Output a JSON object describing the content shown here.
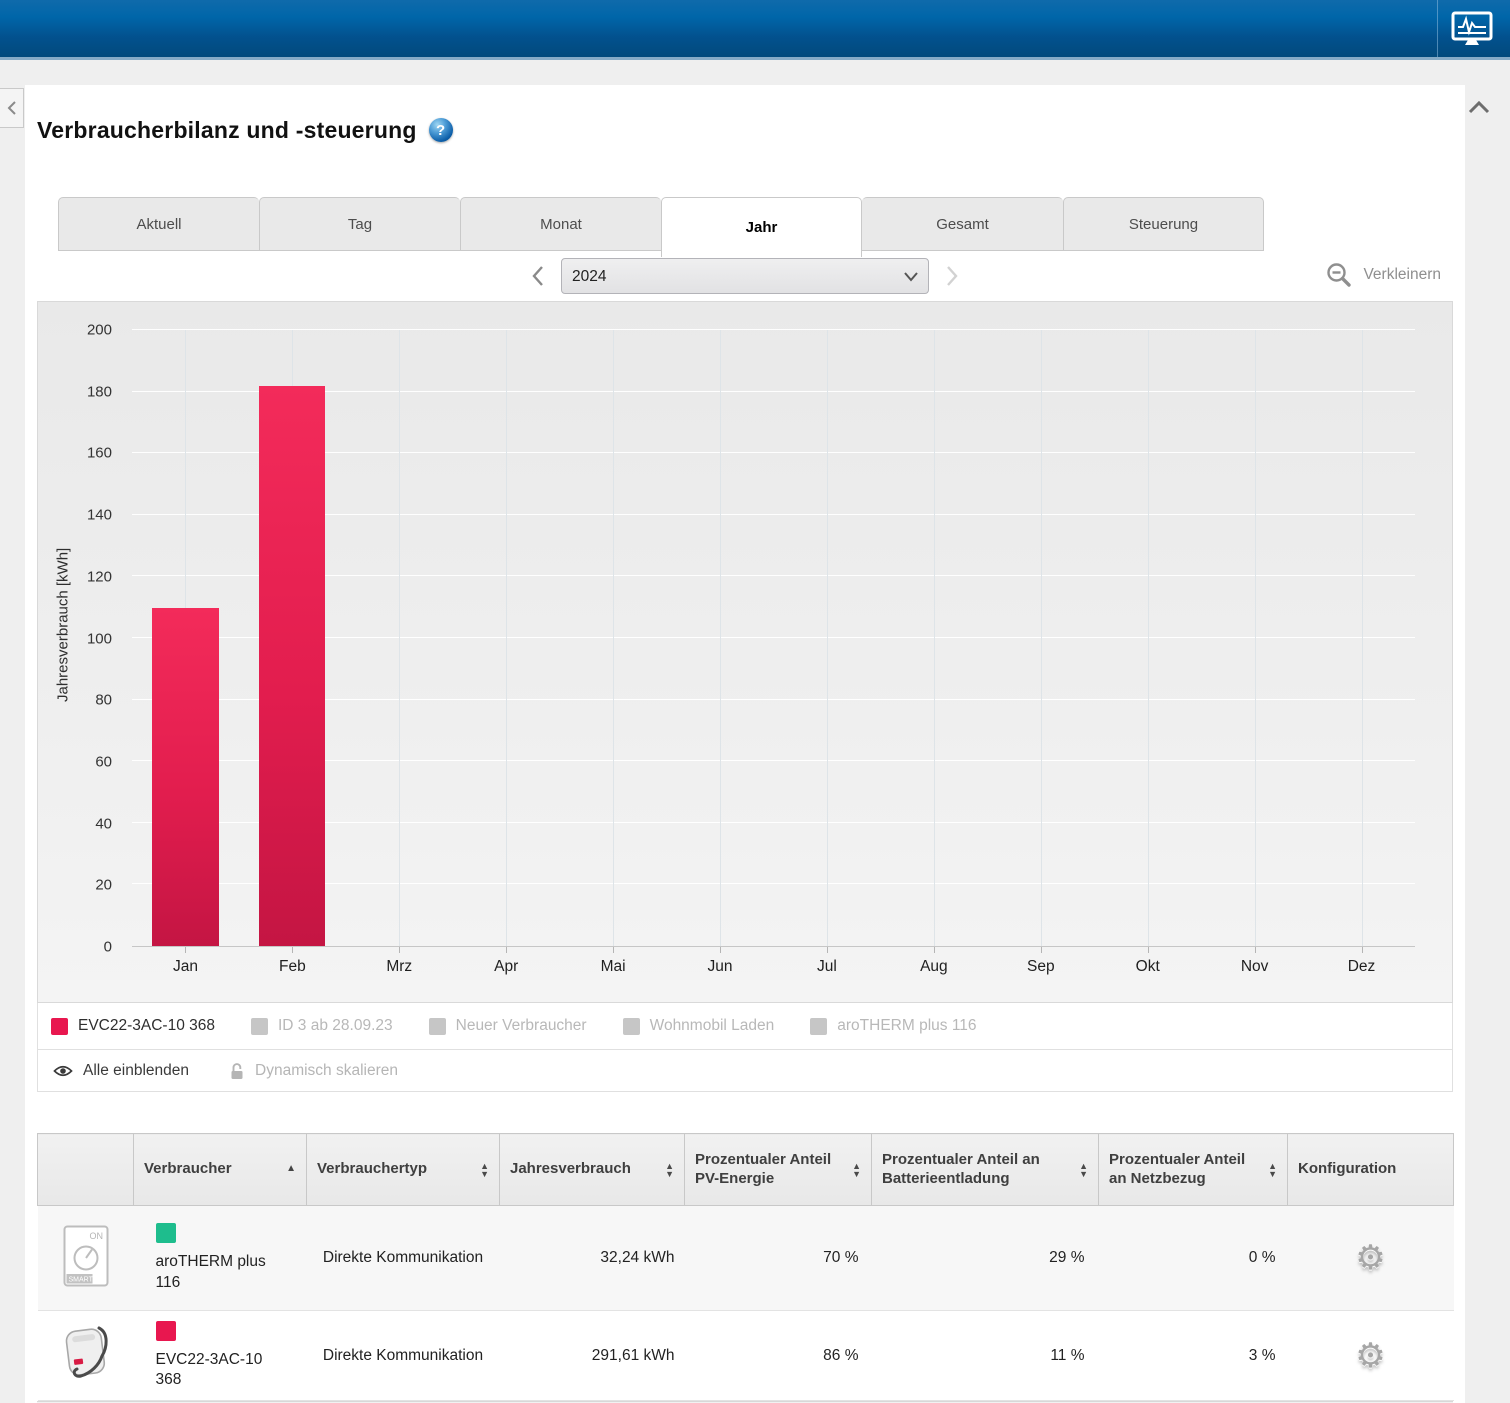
{
  "page": {
    "title": "Verbraucherbilanz und -steuerung",
    "help_glyph": "?"
  },
  "tabs": [
    {
      "label": "Aktuell",
      "active": false
    },
    {
      "label": "Tag",
      "active": false
    },
    {
      "label": "Monat",
      "active": false
    },
    {
      "label": "Jahr",
      "active": true
    },
    {
      "label": "Gesamt",
      "active": false
    },
    {
      "label": "Steuerung",
      "active": false
    }
  ],
  "period_selector": {
    "selected": "2024",
    "options": [
      "2024"
    ]
  },
  "zoom_control": {
    "label": "Verkleinern"
  },
  "chart_data": {
    "type": "bar",
    "title": "",
    "xlabel": "",
    "ylabel": "Jahresverbrauch [kWh]",
    "ylim": [
      0,
      200
    ],
    "ytick_step": 20,
    "grid": true,
    "legend_position": "bottom",
    "categories": [
      "Jan",
      "Feb",
      "Mrz",
      "Apr",
      "Mai",
      "Jun",
      "Jul",
      "Aug",
      "Sep",
      "Okt",
      "Nov",
      "Dez"
    ],
    "series": [
      {
        "name": "EVC22-3AC-10 368",
        "color": "#e8174f",
        "values": [
          109.8,
          181.8,
          0,
          0,
          0,
          0,
          0,
          0,
          0,
          0,
          0,
          0
        ]
      }
    ]
  },
  "legend": {
    "items": [
      {
        "label": "EVC22-3AC-10 368",
        "color": "#e8174f",
        "active": true
      },
      {
        "label": "ID 3 ab 28.09.23",
        "color": "#c6c6c6",
        "active": false
      },
      {
        "label": "Neuer Verbraucher",
        "color": "#c6c6c6",
        "active": false
      },
      {
        "label": "Wohnmobil Laden",
        "color": "#c6c6c6",
        "active": false
      },
      {
        "label": "aroTHERM plus 116",
        "color": "#c6c6c6",
        "active": false
      }
    ],
    "show_all_label": "Alle einblenden",
    "dynamic_scale_label": "Dynamisch skalieren"
  },
  "table": {
    "columns": [
      {
        "label": "",
        "sort": null
      },
      {
        "label": "Verbraucher",
        "sort": "asc"
      },
      {
        "label": "Verbrauchertyp",
        "sort": "both"
      },
      {
        "label": "Jahresverbrauch",
        "sort": "both"
      },
      {
        "label": "Prozentualer Anteil PV-Energie",
        "sort": "both"
      },
      {
        "label": "Prozentualer Anteil an Batterieentladung",
        "sort": "both"
      },
      {
        "label": "Prozentualer Anteil an Netzbezug",
        "sort": "both"
      },
      {
        "label": "Konfiguration",
        "sort": null
      }
    ],
    "rows": [
      {
        "device_icon": "sg-ready-device-icon",
        "swatch_color": "#1ebd8d",
        "name": "aroTHERM plus 116",
        "type": "Direkte Kommunikation",
        "consumption": "32,24 kWh",
        "pv_share": "70 %",
        "battery_share": "29 %",
        "grid_share": "0 %"
      },
      {
        "device_icon": "ev-charger-icon",
        "swatch_color": "#e8174f",
        "name": "EVC22-3AC-10 368",
        "type": "Direkte Kommunikation",
        "consumption": "291,61 kWh",
        "pv_share": "86 %",
        "battery_share": "11 %",
        "grid_share": "3 %"
      }
    ]
  },
  "icons": {
    "gear_glyph": "⚙"
  },
  "colors": {
    "accent_red": "#e8174f",
    "accent_green": "#1ebd8d",
    "header_blue_top": "#0066a9",
    "header_blue_bottom": "#024a7c"
  }
}
